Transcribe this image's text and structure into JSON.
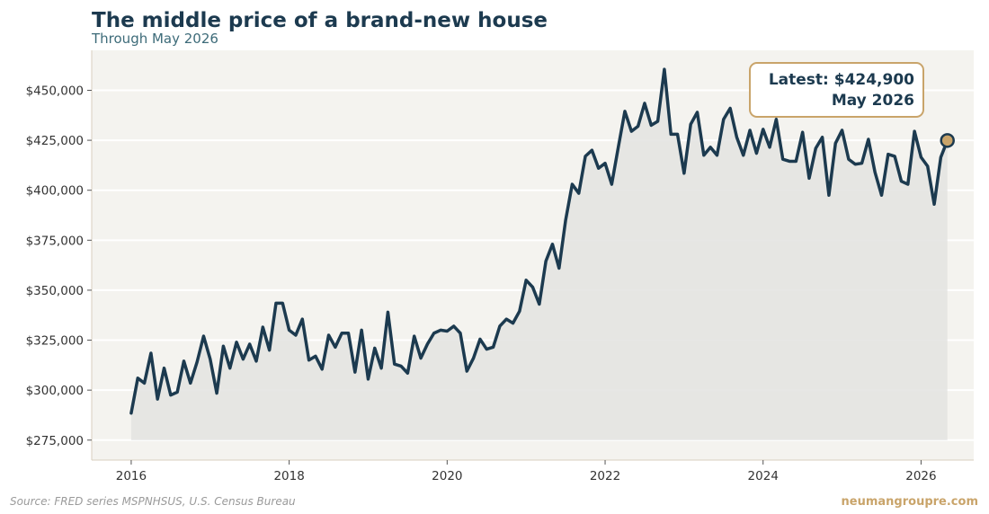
{
  "header": {
    "title": "The middle price of a brand-new house",
    "subtitle": "Through May 2026"
  },
  "footer": {
    "source": "Source: FRED series MSPNHSUS, U.S. Census Bureau",
    "brand": "neumangroupre.com"
  },
  "colors": {
    "line": "#1c3a4f",
    "area_fill": "#e3e3e0",
    "plot_background": "#f4f3ef",
    "gridline": "#ffffff",
    "axis": "#d8cfbf",
    "marker_fill": "#c9a46a",
    "callout_border": "#c9a46a"
  },
  "chart_data": {
    "type": "area",
    "title": "The middle price of a brand-new house",
    "subtitle": "Through May 2026",
    "xlabel": "",
    "ylabel": "",
    "x_label_format": "year",
    "xlim": [
      "2015-07",
      "2026-09"
    ],
    "ylim": [
      265000,
      470000
    ],
    "x_ticks": [
      "2016",
      "2018",
      "2020",
      "2022",
      "2024",
      "2026"
    ],
    "y_ticks": [
      275000,
      300000,
      325000,
      350000,
      375000,
      400000,
      425000,
      450000
    ],
    "y_tick_labels": [
      "$275,000",
      "$300,000",
      "$325,000",
      "$350,000",
      "$375,000",
      "$400,000",
      "$425,000",
      "$450,000"
    ],
    "grid": "horizontal",
    "area_baseline": 275000,
    "annotation": {
      "text_line1": "Latest: $424,900",
      "text_line2": "May 2026",
      "point_date": "2026-05",
      "point_value": 424900
    },
    "series": [
      {
        "x": [
          "2016-01",
          "2016-02",
          "2016-03",
          "2016-04",
          "2016-05",
          "2016-06",
          "2016-07",
          "2016-08",
          "2016-09",
          "2016-10",
          "2016-11",
          "2016-12",
          "2017-01",
          "2017-02",
          "2017-03",
          "2017-04",
          "2017-05",
          "2017-06",
          "2017-07",
          "2017-08",
          "2017-09",
          "2017-10",
          "2017-11",
          "2017-12",
          "2018-01",
          "2018-02",
          "2018-03",
          "2018-04",
          "2018-05",
          "2018-06",
          "2018-07",
          "2018-08",
          "2018-09",
          "2018-10",
          "2018-11",
          "2018-12",
          "2019-01",
          "2019-02",
          "2019-03",
          "2019-04",
          "2019-05",
          "2019-06",
          "2019-07",
          "2019-08",
          "2019-09",
          "2019-10",
          "2019-11",
          "2019-12",
          "2020-01",
          "2020-02",
          "2020-03",
          "2020-04",
          "2020-05",
          "2020-06",
          "2020-07",
          "2020-08",
          "2020-09",
          "2020-10",
          "2020-11",
          "2020-12",
          "2021-01",
          "2021-02",
          "2021-03",
          "2021-04",
          "2021-05",
          "2021-06",
          "2021-07",
          "2021-08",
          "2021-09",
          "2021-10",
          "2021-11",
          "2021-12",
          "2022-01",
          "2022-02",
          "2022-03",
          "2022-04",
          "2022-05",
          "2022-06",
          "2022-07",
          "2022-08",
          "2022-09",
          "2022-10",
          "2022-11",
          "2022-12",
          "2023-01",
          "2023-02",
          "2023-03",
          "2023-04",
          "2023-05",
          "2023-06",
          "2023-07",
          "2023-08",
          "2023-09",
          "2023-10",
          "2023-11",
          "2023-12",
          "2024-01",
          "2024-02",
          "2024-03",
          "2024-04",
          "2024-05",
          "2024-06",
          "2024-07",
          "2024-08",
          "2024-09",
          "2024-10",
          "2024-11",
          "2024-12",
          "2025-01",
          "2025-02",
          "2025-03",
          "2025-04",
          "2025-05",
          "2025-06",
          "2025-07",
          "2025-08",
          "2025-09",
          "2025-10",
          "2025-11",
          "2025-12",
          "2026-01",
          "2026-02",
          "2026-03",
          "2026-04",
          "2026-05"
        ],
        "y": [
          288500,
          306000,
          303500,
          318500,
          295500,
          311000,
          297500,
          299000,
          314500,
          303500,
          314000,
          327000,
          315500,
          298500,
          322000,
          311000,
          324000,
          315500,
          323000,
          314500,
          331500,
          320000,
          343500,
          343500,
          330000,
          327500,
          335500,
          315000,
          317000,
          310500,
          327500,
          321500,
          328500,
          328500,
          309000,
          330000,
          305500,
          321000,
          311000,
          339000,
          313000,
          312000,
          308500,
          327000,
          316000,
          323000,
          328500,
          330000,
          329500,
          332000,
          328500,
          309500,
          316000,
          325500,
          320500,
          321500,
          332000,
          335500,
          333500,
          339500,
          355000,
          351500,
          343000,
          364500,
          373000,
          361000,
          385000,
          403000,
          398500,
          417000,
          420000,
          411000,
          413500,
          403000,
          421500,
          439500,
          429500,
          432000,
          443500,
          432500,
          434500,
          460500,
          428000,
          428000,
          408500,
          433000,
          439000,
          417500,
          421500,
          417500,
          435500,
          441000,
          426500,
          417500,
          430000,
          418500,
          430500,
          421500,
          435500,
          415500,
          414500,
          414500,
          429000,
          406000,
          421000,
          426500,
          397500,
          423500,
          430000,
          415500,
          413000,
          413500,
          425500,
          409000,
          397500,
          418000,
          417000,
          404500,
          403000,
          429500,
          416500,
          412000,
          393000,
          416500,
          424900
        ]
      }
    ]
  }
}
